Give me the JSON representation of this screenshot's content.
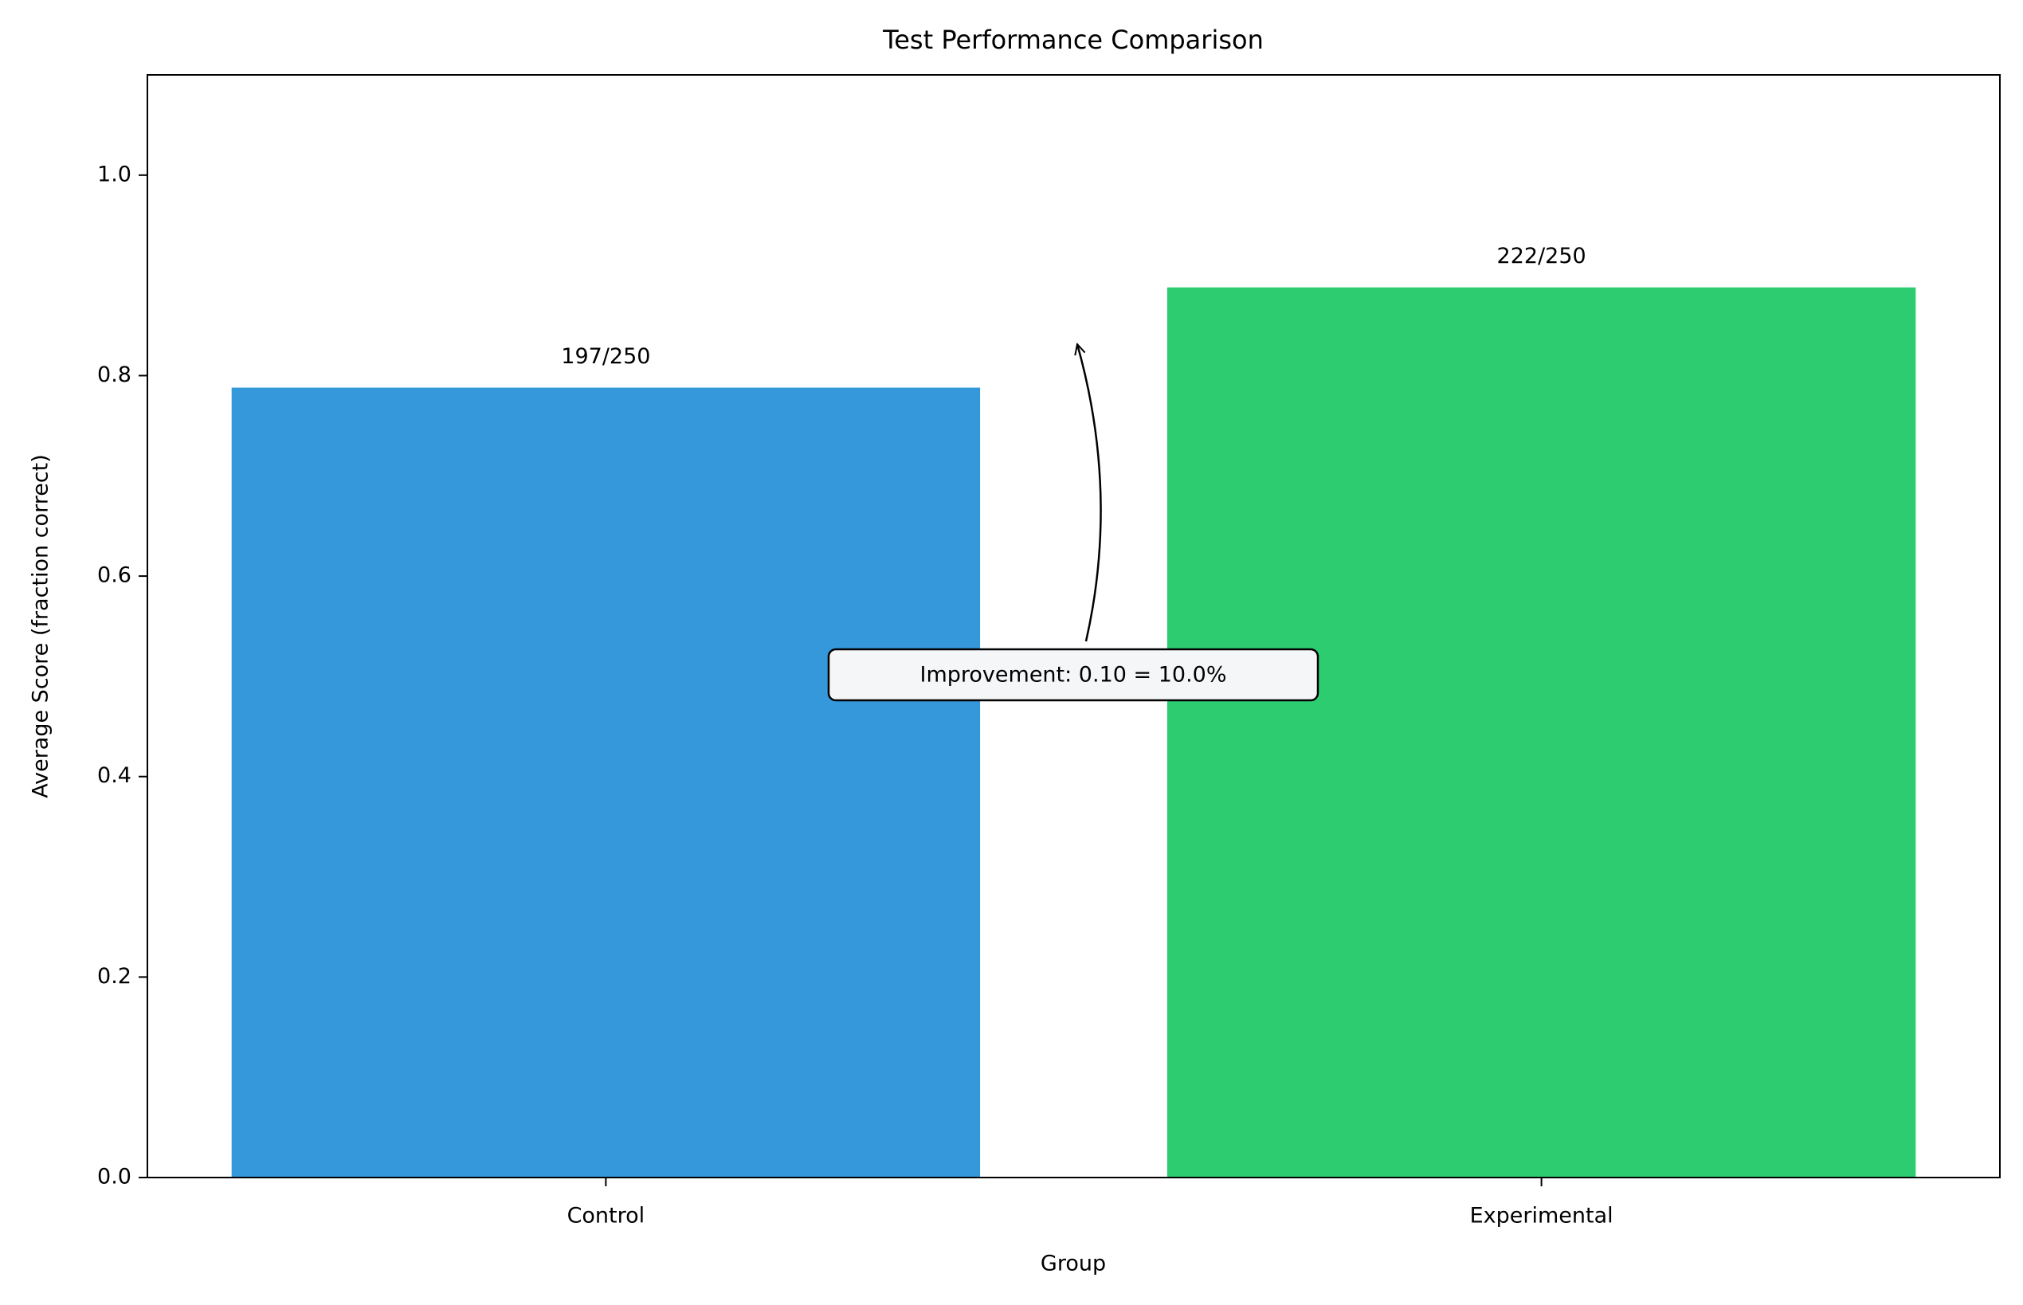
{
  "chart_data": {
    "type": "bar",
    "title": "Test Performance Comparison",
    "x_label": "Group",
    "y_label": "Average Score (fraction correct)",
    "categories": [
      "Control",
      "Experimental"
    ],
    "values": [
      0.788,
      0.888
    ],
    "value_labels": [
      "197/250",
      "222/250"
    ],
    "colors": [
      "#3498db",
      "#2ecc71"
    ],
    "ylim": [
      0,
      1.1
    ],
    "yticks": [
      {
        "value": 0,
        "label": "0.0"
      },
      0.2,
      0.4,
      0.6,
      0.8,
      {
        "value": 1,
        "label": "1.0"
      }
    ],
    "grid": false,
    "annotation": "Improvement: 0.10 = 10.0%"
  }
}
